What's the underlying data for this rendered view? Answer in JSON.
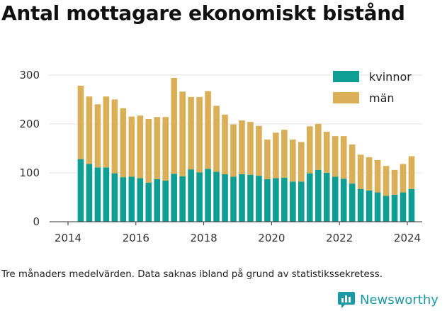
{
  "page": {
    "title": "Antal mottagare ekonomiskt bistånd",
    "caption": "Tre månaders medelvärden. Data saknas ibland på grund av statistikssekretess.",
    "brand": "Newsworthy",
    "brand_icon": "bar-chart-speech-bubble-icon",
    "brand_color": "#1a9aa5"
  },
  "chart_data": {
    "type": "bar",
    "stacked": true,
    "x_unit": "quarter",
    "x": [
      "2014-Q2",
      "2014-Q3",
      "2014-Q4",
      "2015-Q1",
      "2015-Q2",
      "2015-Q3",
      "2015-Q4",
      "2016-Q1",
      "2016-Q2",
      "2016-Q3",
      "2016-Q4",
      "2017-Q1",
      "2017-Q2",
      "2017-Q3",
      "2017-Q4",
      "2018-Q1",
      "2018-Q2",
      "2018-Q3",
      "2018-Q4",
      "2019-Q1",
      "2019-Q2",
      "2019-Q3",
      "2019-Q4",
      "2020-Q1",
      "2020-Q2",
      "2020-Q3",
      "2020-Q4",
      "2021-Q1",
      "2021-Q2",
      "2021-Q3",
      "2021-Q4",
      "2022-Q1",
      "2022-Q2",
      "2022-Q3",
      "2022-Q4",
      "2023-Q1",
      "2023-Q2",
      "2023-Q3",
      "2023-Q4",
      "2024-Q1"
    ],
    "series": [
      {
        "name": "kvinnor",
        "color": "#0f9e94",
        "values": [
          128,
          118,
          111,
          111,
          99,
          91,
          92,
          89,
          80,
          87,
          84,
          98,
          93,
          107,
          101,
          108,
          102,
          97,
          92,
          97,
          96,
          94,
          87,
          89,
          90,
          82,
          82,
          99,
          106,
          100,
          92,
          88,
          78,
          67,
          64,
          60,
          53,
          55,
          60,
          67
        ]
      },
      {
        "name": "män",
        "color": "#daaf57",
        "values": [
          150,
          138,
          129,
          145,
          151,
          141,
          123,
          128,
          130,
          127,
          130,
          196,
          173,
          148,
          154,
          159,
          135,
          122,
          107,
          110,
          108,
          102,
          81,
          93,
          98,
          86,
          81,
          96,
          94,
          84,
          83,
          87,
          80,
          70,
          68,
          66,
          61,
          51,
          58,
          67
        ]
      }
    ],
    "x_ticks": [
      "2014",
      "2016",
      "2018",
      "2020",
      "2022",
      "2024"
    ],
    "y_ticks": [
      "0",
      "100",
      "200",
      "300"
    ],
    "ylim": [
      0,
      320
    ],
    "grid": "horizontal",
    "legend_position": "top-right",
    "title": "Antal mottagare ekonomiskt bistånd",
    "xlabel": "",
    "ylabel": ""
  }
}
